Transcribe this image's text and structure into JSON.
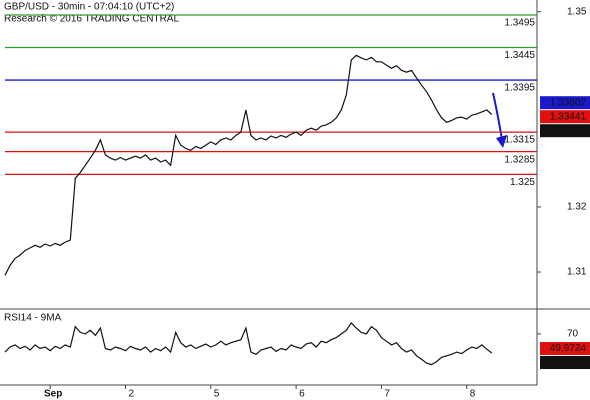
{
  "chart_data": [
    {
      "type": "line",
      "title": "GBP/USD - 30min - 07:04:10 (UTC+2)",
      "subtitle": "Research © 2016 TRADING CENTRAL",
      "color": "#111111",
      "values": [
        1.3095,
        1.311,
        1.3121,
        1.3126,
        1.3133,
        1.3137,
        1.3141,
        1.3138,
        1.3143,
        1.314,
        1.3144,
        1.3141,
        1.3146,
        1.3149,
        1.3244,
        1.3253,
        1.3264,
        1.3275,
        1.3287,
        1.3303,
        1.328,
        1.3275,
        1.3272,
        1.3276,
        1.3272,
        1.3275,
        1.3278,
        1.3275,
        1.328,
        1.3272,
        1.3275,
        1.3269,
        1.3272,
        1.3264,
        1.331,
        1.3295,
        1.329,
        1.3287,
        1.3293,
        1.329,
        1.3295,
        1.33,
        1.3296,
        1.3303,
        1.3306,
        1.3303,
        1.331,
        1.3315,
        1.3349,
        1.331,
        1.3303,
        1.3306,
        1.3303,
        1.3309,
        1.3306,
        1.331,
        1.3307,
        1.3312,
        1.3315,
        1.331,
        1.3318,
        1.3321,
        1.3318,
        1.3324,
        1.3326,
        1.333,
        1.3337,
        1.3349,
        1.3372,
        1.3426,
        1.3433,
        1.3429,
        1.3426,
        1.343,
        1.3423,
        1.3423,
        1.3418,
        1.3413,
        1.3417,
        1.341,
        1.3407,
        1.341,
        1.3398,
        1.3387,
        1.3377,
        1.3364,
        1.3349,
        1.3337,
        1.333,
        1.3333,
        1.3337,
        1.3338,
        1.3335,
        1.3341,
        1.3343,
        1.3346,
        1.3349,
        1.3342
      ],
      "xlim": [
        -1,
        106
      ],
      "ylim": [
        1.3057,
        1.3518
      ],
      "yticks": [
        1.35,
        1.32,
        1.31
      ],
      "levels": [
        {
          "value": 1.3495,
          "label": "1.3495",
          "color": "#2e9a2e"
        },
        {
          "value": 1.3445,
          "label": "1.3445",
          "color": "#2e9a2e"
        },
        {
          "value": 1.3395,
          "label": "1.3395",
          "color": "#1a1acc"
        },
        {
          "value": 1.3315,
          "label": "1.3315",
          "color": "#e01010"
        },
        {
          "value": 1.3285,
          "label": "1.3285",
          "color": "#e01010"
        },
        {
          "value": 1.325,
          "label": "1.325",
          "color": "#e01010"
        }
      ],
      "price_tags": [
        {
          "value": 1.33602,
          "color": "#1a1acc"
        },
        {
          "value": 1.33441,
          "color": "#e01010"
        },
        {
          "value": 1.3342,
          "color": "#111111"
        }
      ]
    },
    {
      "type": "line",
      "title": "RSI14 - 9MA",
      "color": "#111111",
      "values": [
        45,
        52,
        55,
        50,
        53,
        48,
        55,
        50,
        52,
        47,
        53,
        50,
        55,
        52,
        80,
        72,
        70,
        75,
        68,
        78,
        50,
        48,
        52,
        50,
        47,
        53,
        50,
        48,
        52,
        45,
        50,
        47,
        52,
        45,
        72,
        58,
        52,
        55,
        50,
        53,
        56,
        52,
        55,
        60,
        55,
        58,
        60,
        62,
        78,
        45,
        42,
        48,
        50,
        52,
        46,
        50,
        48,
        55,
        52,
        50,
        56,
        58,
        52,
        60,
        58,
        62,
        65,
        70,
        75,
        85,
        78,
        72,
        70,
        80,
        75,
        65,
        60,
        55,
        58,
        50,
        45,
        48,
        40,
        35,
        30,
        28,
        32,
        38,
        40,
        42,
        45,
        43,
        48,
        52,
        50,
        55,
        49,
        43.8411
      ],
      "xlim": [
        -1,
        106
      ],
      "ylim": [
        0,
        100
      ],
      "yticks": [
        70
      ],
      "xticks": [
        {
          "value": 9,
          "label": "Sep"
        },
        {
          "value": 24,
          "label": "2"
        },
        {
          "value": 41,
          "label": "5"
        },
        {
          "value": 58,
          "label": "6"
        },
        {
          "value": 75,
          "label": "7"
        },
        {
          "value": 92,
          "label": "8"
        }
      ],
      "price_tags": [
        {
          "value": 49.9724,
          "color": "#e01010"
        },
        {
          "value": 43.8411,
          "color": "#111111"
        }
      ]
    }
  ]
}
